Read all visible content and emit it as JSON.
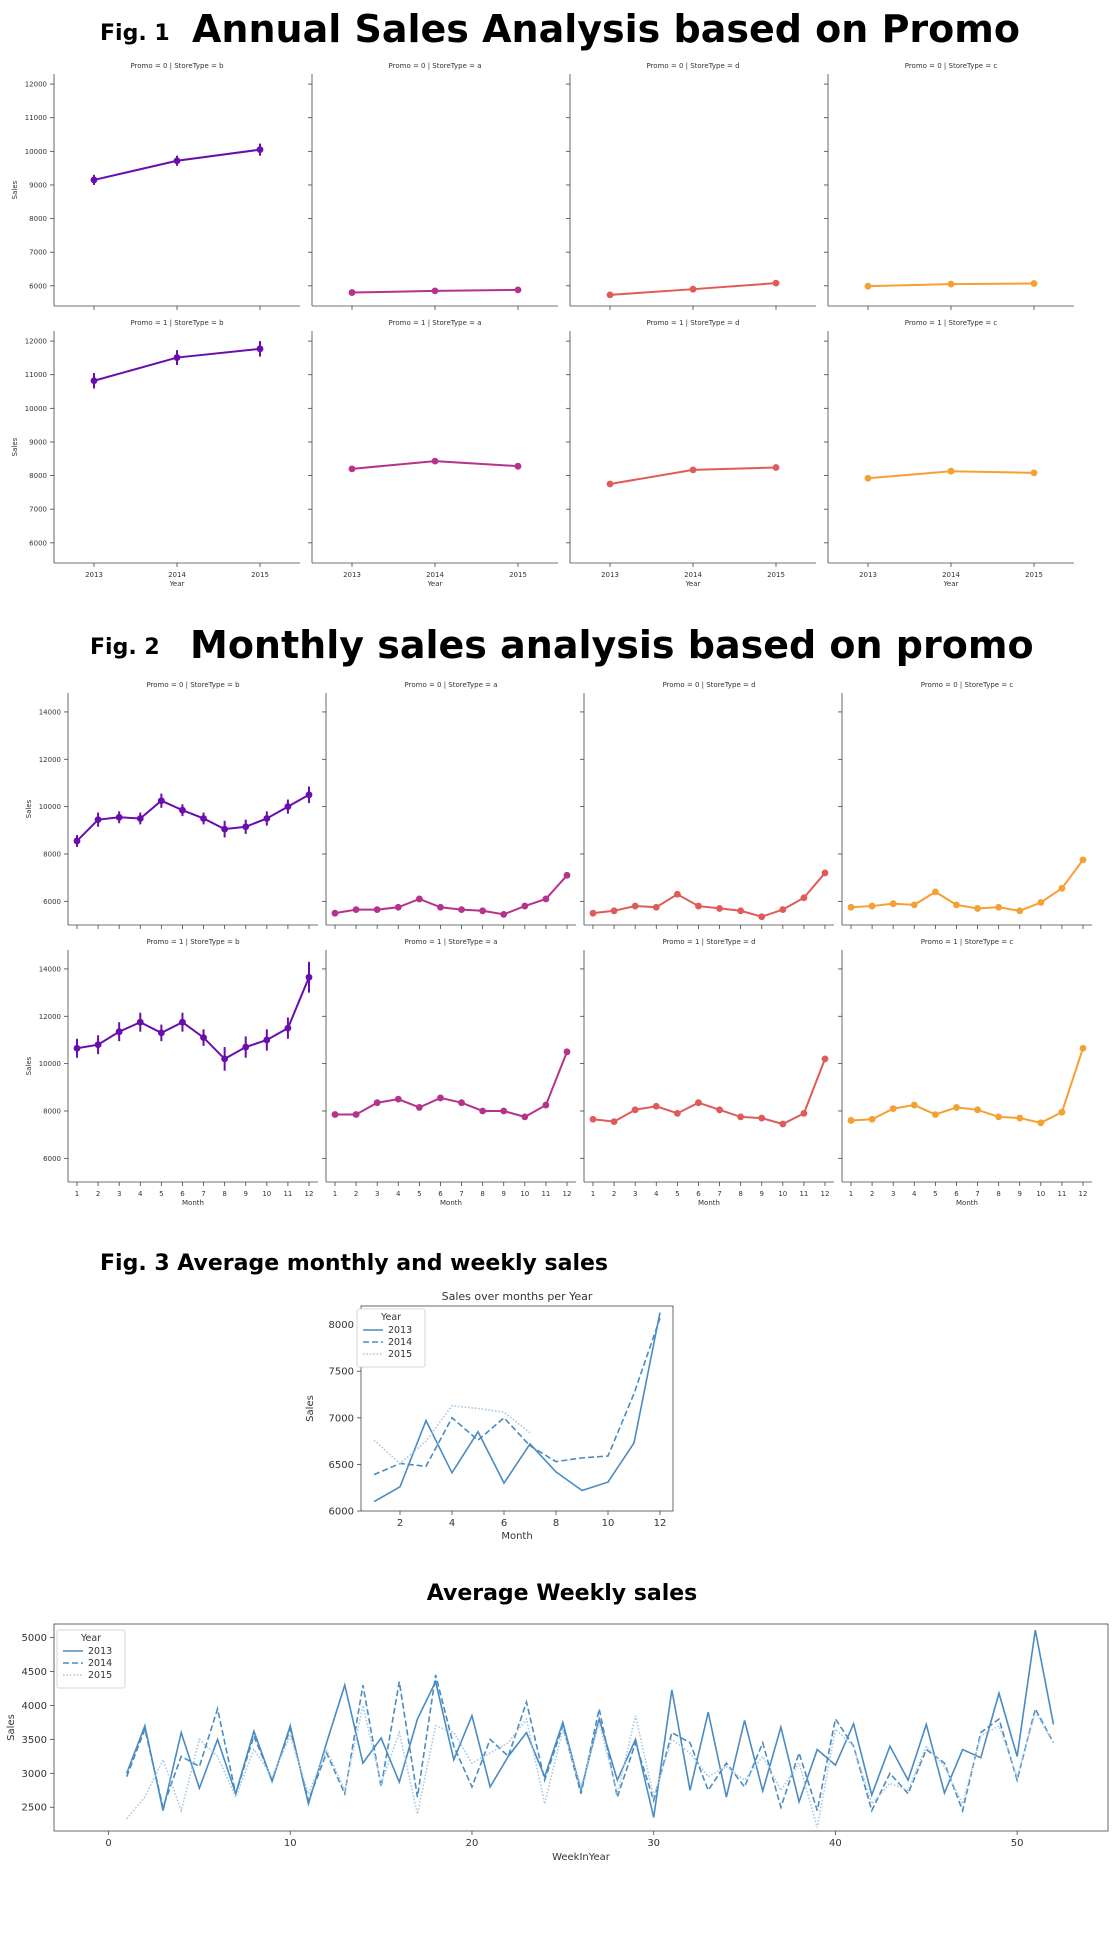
{
  "fig1": {
    "label": "Fig. 1",
    "title": "Annual Sales Analysis based on Promo"
  },
  "fig2": {
    "label": "Fig. 2",
    "title": "Monthly sales analysis based on promo"
  },
  "fig3": {
    "heading": "Fig. 3 Average monthly and weekly sales"
  },
  "weekly_heading": "Average Weekly sales",
  "chart_data": [
    {
      "id": "annual",
      "type": "line",
      "xlabel": "Year",
      "ylabel": "Sales",
      "x": [
        "2013",
        "2014",
        "2015"
      ],
      "ylim": [
        5400,
        12300
      ],
      "yticks": [
        6000,
        7000,
        8000,
        9000,
        10000,
        11000,
        12000
      ],
      "panels": [
        {
          "title": "Promo = 0 | StoreType = b",
          "color": "#6a0dad",
          "values": [
            9150,
            9720,
            10050
          ],
          "err": [
            150,
            150,
            180
          ]
        },
        {
          "title": "Promo = 0 | StoreType = a",
          "color": "#b5338a",
          "values": [
            5800,
            5850,
            5880
          ],
          "err": [
            0,
            0,
            0
          ]
        },
        {
          "title": "Promo = 0 | StoreType = d",
          "color": "#e05a5a",
          "values": [
            5730,
            5900,
            6080
          ],
          "err": [
            0,
            0,
            0
          ]
        },
        {
          "title": "Promo = 0 | StoreType = c",
          "color": "#f5a033",
          "values": [
            5990,
            6050,
            6070
          ],
          "err": [
            0,
            0,
            0
          ]
        },
        {
          "title": "Promo = 1 | StoreType = b",
          "color": "#6a0dad",
          "values": [
            10820,
            11510,
            11770
          ],
          "err": [
            230,
            220,
            230
          ]
        },
        {
          "title": "Promo = 1 | StoreType = a",
          "color": "#b5338a",
          "values": [
            8200,
            8430,
            8280
          ],
          "err": [
            0,
            0,
            0
          ]
        },
        {
          "title": "Promo = 1 | StoreType = d",
          "color": "#e05a5a",
          "values": [
            7750,
            8170,
            8240
          ],
          "err": [
            0,
            0,
            0
          ]
        },
        {
          "title": "Promo = 1 | StoreType = c",
          "color": "#f5a033",
          "values": [
            7920,
            8130,
            8080
          ],
          "err": [
            0,
            0,
            0
          ]
        }
      ]
    },
    {
      "id": "monthly",
      "type": "line",
      "xlabel": "Month",
      "ylabel": "Sales",
      "x": [
        "1",
        "2",
        "3",
        "4",
        "5",
        "6",
        "7",
        "8",
        "9",
        "10",
        "11",
        "12"
      ],
      "ylim": [
        5000,
        14800
      ],
      "yticks": [
        6000,
        8000,
        10000,
        12000,
        14000
      ],
      "panels": [
        {
          "title": "Promo = 0 | StoreType = b",
          "color": "#6a0dad",
          "values": [
            8550,
            9450,
            9550,
            9500,
            10250,
            9850,
            9500,
            9050,
            9150,
            9500,
            10000,
            10500
          ],
          "err": [
            250,
            300,
            250,
            250,
            300,
            250,
            250,
            350,
            300,
            300,
            300,
            350
          ]
        },
        {
          "title": "Promo = 0 | StoreType = a",
          "color": "#b5338a",
          "values": [
            5500,
            5650,
            5650,
            5750,
            6100,
            5750,
            5650,
            5600,
            5450,
            5800,
            6100,
            7100
          ],
          "err": [
            0,
            0,
            0,
            0,
            0,
            0,
            0,
            0,
            0,
            0,
            0,
            0
          ]
        },
        {
          "title": "Promo = 0 | StoreType = d",
          "color": "#e05a5a",
          "values": [
            5500,
            5600,
            5800,
            5750,
            6300,
            5800,
            5700,
            5600,
            5350,
            5650,
            6150,
            7200
          ],
          "err": [
            0,
            0,
            0,
            0,
            0,
            0,
            0,
            0,
            0,
            0,
            0,
            0
          ]
        },
        {
          "title": "Promo = 0 | StoreType = c",
          "color": "#f5a033",
          "values": [
            5750,
            5800,
            5900,
            5850,
            6400,
            5850,
            5700,
            5750,
            5600,
            5950,
            6550,
            7750
          ],
          "err": [
            0,
            0,
            0,
            0,
            0,
            0,
            0,
            0,
            0,
            0,
            0,
            0
          ]
        },
        {
          "title": "Promo = 1 | StoreType = b",
          "color": "#6a0dad",
          "values": [
            10650,
            10800,
            11350,
            11750,
            11300,
            11750,
            11100,
            10200,
            10700,
            11000,
            11500,
            13650
          ],
          "err": [
            400,
            400,
            400,
            400,
            350,
            400,
            350,
            500,
            450,
            450,
            450,
            650
          ]
        },
        {
          "title": "Promo = 1 | StoreType = a",
          "color": "#b5338a",
          "values": [
            7850,
            7850,
            8350,
            8500,
            8150,
            8550,
            8350,
            8000,
            8000,
            7750,
            8250,
            10500
          ],
          "err": [
            0,
            0,
            0,
            0,
            0,
            0,
            0,
            0,
            0,
            0,
            0,
            0
          ]
        },
        {
          "title": "Promo = 1 | StoreType = d",
          "color": "#e05a5a",
          "values": [
            7650,
            7550,
            8050,
            8200,
            7900,
            8350,
            8050,
            7750,
            7700,
            7450,
            7900,
            10200
          ],
          "err": [
            0,
            0,
            0,
            0,
            0,
            0,
            0,
            0,
            0,
            0,
            0,
            0
          ]
        },
        {
          "title": "Promo = 1 | StoreType = c",
          "color": "#f5a033",
          "values": [
            7600,
            7650,
            8100,
            8250,
            7850,
            8150,
            8050,
            7750,
            7700,
            7500,
            7950,
            10650
          ],
          "err": [
            0,
            0,
            0,
            0,
            0,
            0,
            0,
            0,
            0,
            0,
            0,
            0
          ]
        }
      ]
    },
    {
      "id": "months_per_year",
      "type": "line",
      "title": "Sales over months per Year",
      "xlabel": "Month",
      "ylabel": "Sales",
      "xlim": [
        0.5,
        12.5
      ],
      "ylim": [
        6000,
        8200
      ],
      "xticks": [
        2,
        4,
        6,
        8,
        10,
        12
      ],
      "yticks": [
        6000,
        6500,
        7000,
        7500,
        8000
      ],
      "legend": {
        "title": "Year",
        "position": "top-left"
      },
      "series": [
        {
          "name": "2013",
          "dash": "solid",
          "color": "#4a8cc2",
          "x": [
            1,
            2,
            3,
            4,
            5,
            6,
            7,
            8,
            9,
            10,
            11,
            12
          ],
          "y": [
            6100,
            6260,
            6970,
            6410,
            6850,
            6300,
            6720,
            6420,
            6220,
            6310,
            6730,
            8130
          ]
        },
        {
          "name": "2014",
          "dash": "dashed",
          "color": "#4a8cc2",
          "x": [
            1,
            2,
            3,
            4,
            5,
            6,
            7,
            8,
            9,
            10,
            11,
            12
          ],
          "y": [
            6390,
            6510,
            6480,
            7000,
            6760,
            7000,
            6700,
            6530,
            6570,
            6590,
            7260,
            8070
          ]
        },
        {
          "name": "2015",
          "dash": "dotted",
          "color": "#a9c9e6",
          "x": [
            1,
            2,
            3,
            4,
            5,
            6,
            7
          ],
          "y": [
            6760,
            6510,
            6750,
            7130,
            7100,
            7060,
            6840
          ]
        }
      ]
    },
    {
      "id": "weekly",
      "type": "line",
      "xlabel": "WeekInYear",
      "ylabel": "Sales",
      "xlim": [
        -3,
        55
      ],
      "ylim": [
        2150,
        5200
      ],
      "xticks": [
        0,
        10,
        20,
        30,
        40,
        50
      ],
      "yticks": [
        2500,
        3000,
        3500,
        4000,
        4500,
        5000
      ],
      "legend": {
        "title": "Year",
        "position": "top-left"
      },
      "series": [
        {
          "name": "2013",
          "dash": "solid",
          "color": "#4a8cc2",
          "x": [
            1,
            2,
            3,
            4,
            5,
            6,
            7,
            8,
            9,
            10,
            11,
            12,
            13,
            14,
            15,
            16,
            17,
            18,
            19,
            20,
            21,
            22,
            23,
            24,
            25,
            26,
            27,
            28,
            29,
            30,
            31,
            32,
            33,
            34,
            35,
            36,
            37,
            38,
            39,
            40,
            41,
            42,
            43,
            44,
            45,
            46,
            47,
            48,
            49,
            50,
            51,
            52
          ],
          "y": [
            3000,
            3700,
            2450,
            3600,
            2780,
            3500,
            2700,
            3620,
            2880,
            3700,
            2550,
            3450,
            4300,
            3150,
            3520,
            2870,
            3800,
            4350,
            3200,
            3850,
            2800,
            3250,
            3600,
            2950,
            3750,
            2750,
            3800,
            2900,
            3500,
            2350,
            4230,
            2750,
            3900,
            2650,
            3780,
            2740,
            3680,
            2580,
            3350,
            3120,
            3730,
            2680,
            3400,
            2900,
            3720,
            2710,
            3350,
            3230,
            4180,
            3250,
            5110,
            3720
          ]
        },
        {
          "name": "2014",
          "dash": "dashed",
          "color": "#4a8cc2",
          "x": [
            1,
            2,
            3,
            4,
            5,
            6,
            7,
            8,
            9,
            10,
            11,
            12,
            13,
            14,
            15,
            16,
            17,
            18,
            19,
            20,
            21,
            22,
            23,
            24,
            25,
            26,
            27,
            28,
            29,
            30,
            31,
            32,
            33,
            34,
            35,
            36,
            37,
            38,
            39,
            40,
            41,
            42,
            43,
            44,
            45,
            46,
            47,
            48,
            49,
            50,
            51,
            52
          ],
          "y": [
            2950,
            3650,
            2500,
            3250,
            3100,
            3950,
            2700,
            3550,
            2900,
            3650,
            2600,
            3300,
            2700,
            4300,
            2800,
            4350,
            2650,
            4450,
            3400,
            2800,
            3500,
            3250,
            4050,
            2900,
            3700,
            2700,
            3950,
            2650,
            3450,
            2600,
            3600,
            3450,
            2750,
            3150,
            2800,
            3450,
            2500,
            3300,
            2450,
            3800,
            3400,
            2450,
            3000,
            2700,
            3350,
            3150,
            2450,
            3600,
            3800,
            2900,
            3950,
            3450
          ]
        },
        {
          "name": "2015",
          "dash": "dotted",
          "color": "#a9c9e6",
          "x": [
            1,
            2,
            3,
            4,
            5,
            6,
            7,
            8,
            9,
            10,
            11,
            12,
            13,
            14,
            15,
            16,
            17,
            18,
            19,
            20,
            21,
            22,
            23,
            24,
            25,
            26,
            27,
            28,
            29,
            30,
            31,
            32,
            33,
            34,
            35,
            36,
            37,
            38,
            39,
            40,
            41,
            42,
            43,
            44,
            45,
            46,
            47,
            48,
            49,
            50,
            51,
            52
          ],
          "y": [
            2330,
            2650,
            3200,
            2450,
            3500,
            3250,
            2650,
            3350,
            2950,
            3550,
            2700,
            3350,
            2750,
            4000,
            2850,
            3600,
            2400,
            3700,
            3600,
            3150,
            3300,
            3450,
            3800,
            2550,
            3650,
            2800,
            3750,
            2700,
            3850,
            2650,
            3500,
            3300,
            2950,
            3100,
            2900,
            3250,
            2750,
            3150,
            2200,
            3650,
            3400,
            2550,
            2850,
            2750,
            3400,
            3100,
            2550,
            3550,
            3700,
            2950,
            3900,
            3450
          ]
        }
      ]
    }
  ]
}
